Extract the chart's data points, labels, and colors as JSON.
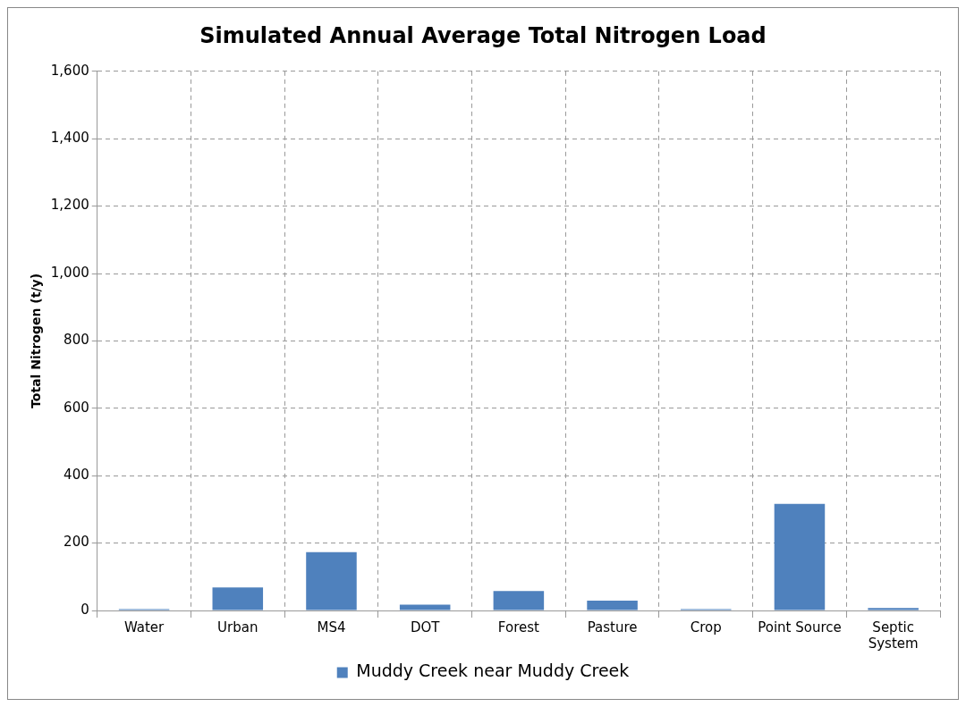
{
  "chart_data": {
    "type": "bar",
    "title": "Simulated Annual Average Total Nitrogen Load",
    "ylabel": "Total Nitrogen (t/y)",
    "categories": [
      "Water",
      "Urban",
      "MS4",
      "DOT",
      "Forest",
      "Pasture",
      "Crop",
      "Point Source",
      "Septic System"
    ],
    "series": [
      {
        "name": "Muddy Creek near Muddy Creek",
        "color": "#4f81bd",
        "values": [
          4,
          68,
          173,
          17,
          58,
          29,
          4,
          316,
          7
        ]
      }
    ],
    "ylim": [
      0,
      1600
    ],
    "yticks": [
      0,
      200,
      400,
      600,
      800,
      {
        "value": 1000,
        "label": "1,000"
      },
      {
        "value": 1200,
        "label": "1,200"
      },
      {
        "value": 1400,
        "label": "1,400"
      },
      {
        "value": 1600,
        "label": "1,600"
      }
    ],
    "grid": true,
    "legend": "bottom"
  }
}
